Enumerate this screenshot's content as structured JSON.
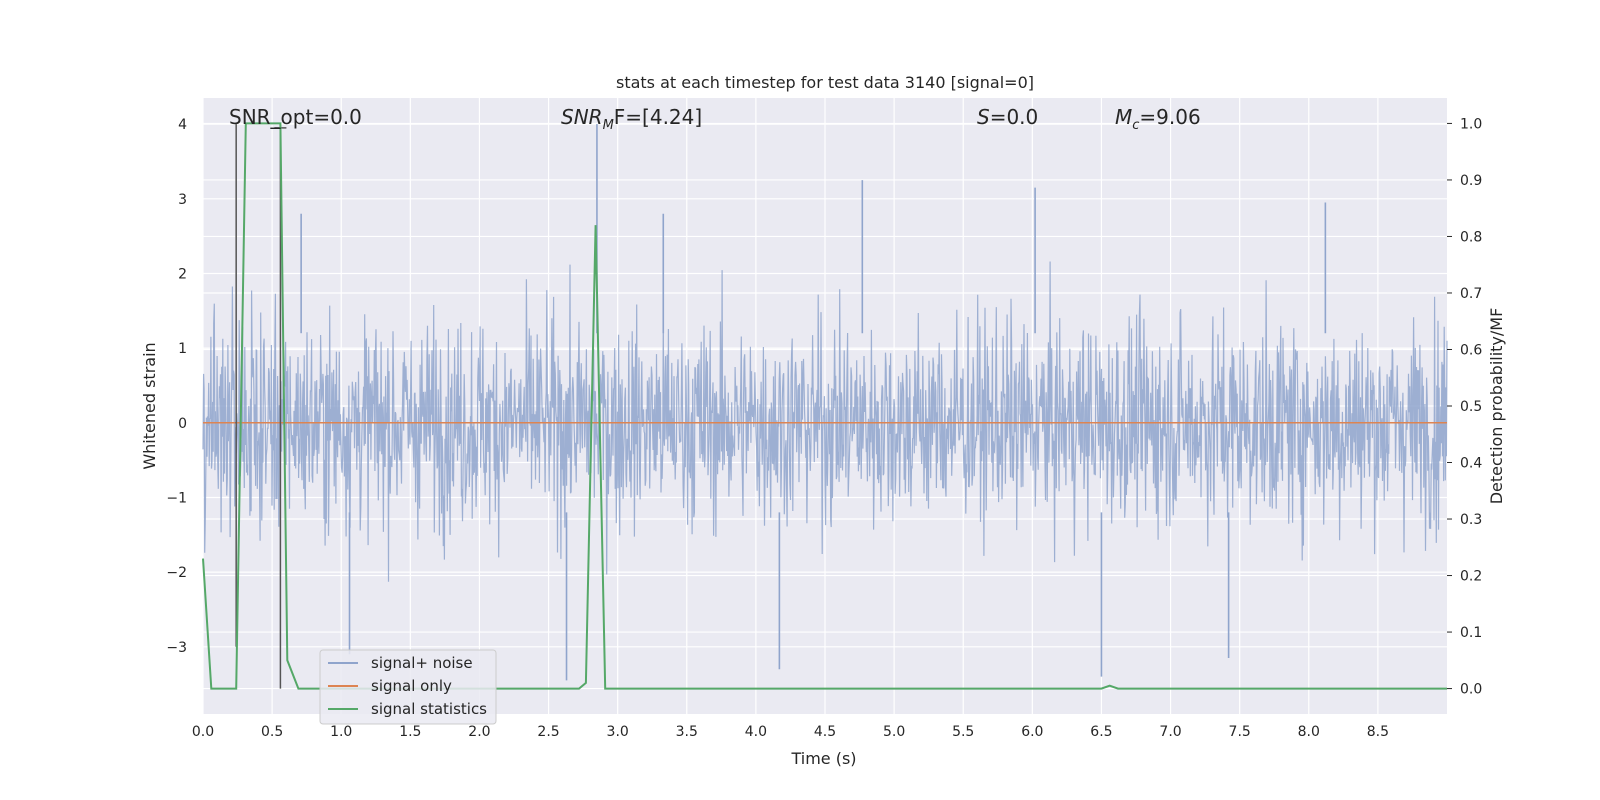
{
  "chart_data": {
    "type": "line",
    "title": "stats at each timestep for test data 3140 [signal=0]",
    "xlabel": "Time (s)",
    "ylabel_left": "Whitened strain",
    "ylabel_right": "Detection probability/MF",
    "xlim": [
      0.0,
      9.0
    ],
    "ylim_left": [
      -3.9,
      4.35
    ],
    "ylim_right": [
      -0.045,
      1.045
    ],
    "xticks": [
      "0.0",
      "0.5",
      "1.0",
      "1.5",
      "2.0",
      "2.5",
      "3.0",
      "3.5",
      "4.0",
      "4.5",
      "5.0",
      "5.5",
      "6.0",
      "6.5",
      "7.0",
      "7.5",
      "8.0",
      "8.5"
    ],
    "yticks_left": [
      "4",
      "3",
      "2",
      "1",
      "0",
      "−1",
      "−2",
      "−3"
    ],
    "yticks_right": [
      "1.0",
      "0.9",
      "0.8",
      "0.7",
      "0.6",
      "0.5",
      "0.4",
      "0.3",
      "0.2",
      "0.1",
      "0.0"
    ],
    "grid": true,
    "legend_position": "lower-left",
    "annotations": {
      "snr_opt": "SNR_opt=0.0",
      "snr_mf_main": "SNR",
      "snr_mf_sub": "M",
      "snr_mf_tail": "F=[4.24]",
      "s_main": "S",
      "s_tail": "=0.0",
      "mc_main": "M",
      "mc_sub": "c",
      "mc_tail": "=9.06"
    },
    "series": [
      {
        "name": "signal+ noise",
        "color": "#4c72b0",
        "axis": "left",
        "description": "whitened strain noise, roughly within ±2.5 with peaks up to 4.0 and down to -3.45",
        "typical_envelope": [
          -2.3,
          2.5
        ],
        "notable_peaks": [
          {
            "x": 2.85,
            "y": 4.0
          },
          {
            "x": 4.77,
            "y": 3.25
          },
          {
            "x": 6.02,
            "y": 3.15
          },
          {
            "x": 8.12,
            "y": 2.95
          },
          {
            "x": 0.71,
            "y": 2.8
          },
          {
            "x": 3.33,
            "y": 2.8
          },
          {
            "x": 2.63,
            "y": -3.45
          },
          {
            "x": 4.17,
            "y": -3.3
          },
          {
            "x": 6.5,
            "y": -3.4
          },
          {
            "x": 1.06,
            "y": -3.1
          },
          {
            "x": 7.42,
            "y": -3.15
          }
        ]
      },
      {
        "name": "signal only",
        "color": "#dd8452",
        "axis": "left",
        "x": [
          0.0,
          9.0
        ],
        "y": [
          0.0,
          0.0
        ]
      },
      {
        "name": "signal statistics",
        "color": "#55a868",
        "axis": "right",
        "x": [
          0.0,
          0.06,
          0.24,
          0.31,
          0.56,
          0.61,
          0.69,
          2.72,
          2.77,
          2.84,
          2.91,
          2.97,
          6.5,
          6.56,
          6.62,
          9.0
        ],
        "y": [
          0.23,
          0.0,
          0.0,
          1.0,
          1.0,
          0.05,
          0.0,
          0.0,
          0.01,
          0.82,
          0.0,
          0.0,
          0.0,
          0.005,
          0.0,
          0.0
        ]
      }
    ],
    "markers": {
      "color": "#555555",
      "left_marker_x": 0.24,
      "right_marker_x": 0.56
    }
  }
}
